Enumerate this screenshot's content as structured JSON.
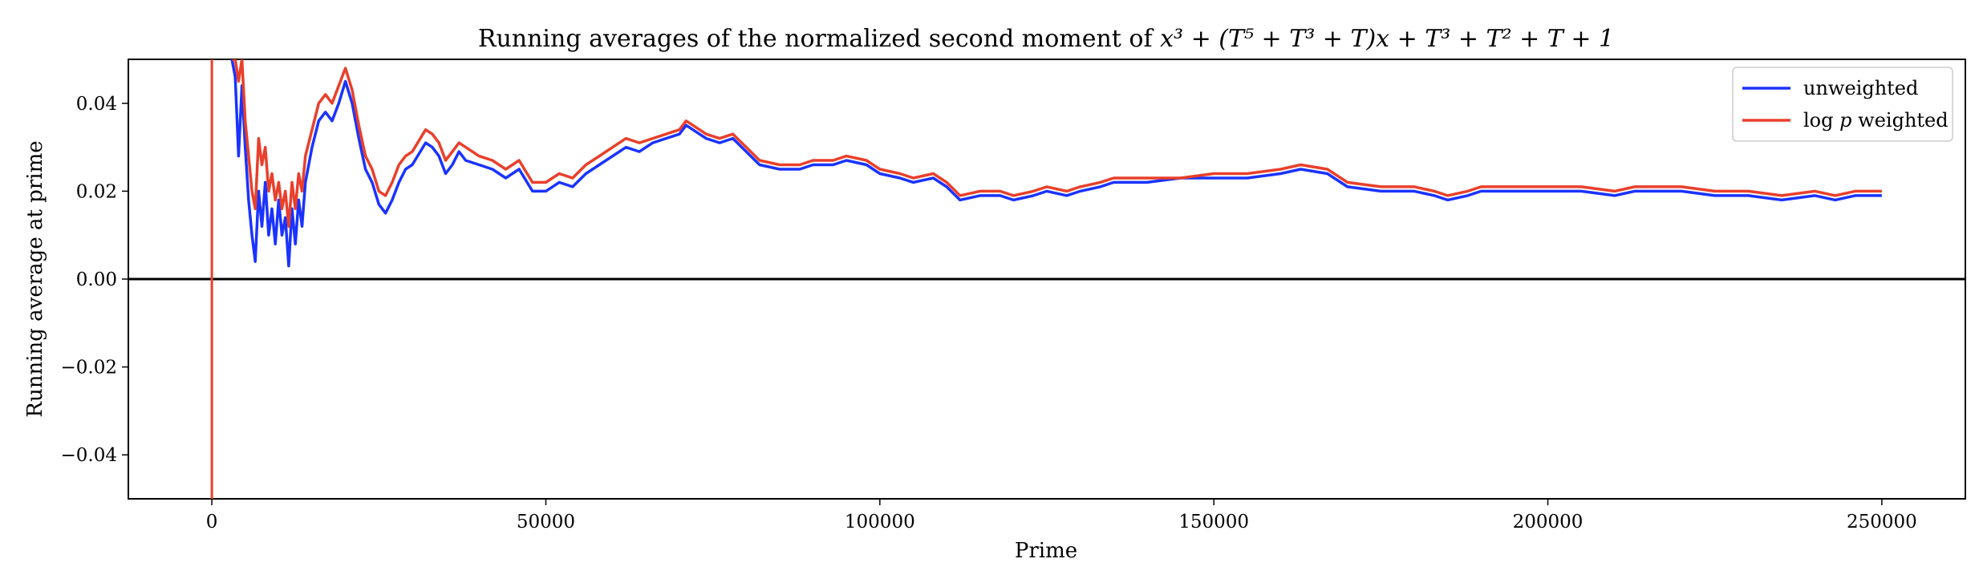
{
  "chart_data": {
    "type": "line",
    "title": "Running averages of the normalized second moment of x³ + (T⁵ + T³ + T)x + T³ + T² + T + 1",
    "title_parts": {
      "prefix": "Running averages of the normalized second moment of ",
      "formula": "x³ + (T⁵ + T³ + T)x + T³ + T² + T + 1"
    },
    "xlabel": "Prime",
    "ylabel": "Running average at prime",
    "xlim": [
      -12500,
      262500
    ],
    "ylim": [
      -0.05,
      0.05
    ],
    "x_ticks": [
      0,
      50000,
      100000,
      150000,
      200000,
      250000
    ],
    "x_tick_labels": [
      "0",
      "50000",
      "100000",
      "150000",
      "200000",
      "250000"
    ],
    "y_ticks": [
      -0.04,
      -0.02,
      0.0,
      0.02,
      0.04
    ],
    "y_tick_labels": [
      "−0.04",
      "−0.02",
      "0.00",
      "0.02",
      "0.04"
    ],
    "grid": false,
    "legend_position": "top-right",
    "reference_lines": [
      {
        "orientation": "horizontal",
        "y": 0.0,
        "color": "#000000"
      },
      {
        "orientation": "vertical",
        "x": 0,
        "color": "#e8402c"
      }
    ],
    "series": [
      {
        "name": "unweighted",
        "legend_label": "unweighted",
        "color": "#1a33ff",
        "x": [
          3000,
          3500,
          4000,
          4500,
          5000,
          5500,
          6000,
          6500,
          7000,
          7500,
          8000,
          8500,
          9000,
          9500,
          10000,
          10500,
          11000,
          11500,
          12000,
          12500,
          13000,
          13500,
          14000,
          15000,
          16000,
          17000,
          18000,
          19000,
          20000,
          21000,
          22000,
          23000,
          24000,
          25000,
          26000,
          27000,
          28000,
          29000,
          30000,
          32000,
          33000,
          34000,
          35000,
          36000,
          37000,
          38000,
          40000,
          42000,
          44000,
          46000,
          48000,
          50000,
          52000,
          54000,
          56000,
          58000,
          60000,
          62000,
          64000,
          66000,
          68000,
          70000,
          71000,
          72000,
          74000,
          76000,
          78000,
          80000,
          82000,
          85000,
          88000,
          90000,
          93000,
          95000,
          98000,
          100000,
          103000,
          105000,
          108000,
          110000,
          112000,
          115000,
          118000,
          120000,
          123000,
          125000,
          128000,
          130000,
          133000,
          135000,
          140000,
          145000,
          150000,
          155000,
          160000,
          163000,
          167000,
          170000,
          175000,
          180000,
          183000,
          185000,
          188000,
          190000,
          195000,
          200000,
          205000,
          210000,
          213000,
          215000,
          220000,
          225000,
          230000,
          235000,
          240000,
          243000,
          246000,
          250000
        ],
        "values": [
          0.05,
          0.046,
          0.028,
          0.044,
          0.03,
          0.018,
          0.01,
          0.004,
          0.02,
          0.012,
          0.022,
          0.01,
          0.016,
          0.008,
          0.018,
          0.01,
          0.014,
          0.003,
          0.016,
          0.008,
          0.018,
          0.012,
          0.022,
          0.03,
          0.036,
          0.038,
          0.036,
          0.04,
          0.045,
          0.04,
          0.032,
          0.025,
          0.022,
          0.017,
          0.015,
          0.018,
          0.022,
          0.025,
          0.026,
          0.031,
          0.03,
          0.028,
          0.024,
          0.026,
          0.029,
          0.027,
          0.026,
          0.025,
          0.023,
          0.025,
          0.02,
          0.02,
          0.022,
          0.021,
          0.024,
          0.026,
          0.028,
          0.03,
          0.029,
          0.031,
          0.032,
          0.033,
          0.035,
          0.034,
          0.032,
          0.031,
          0.032,
          0.029,
          0.026,
          0.025,
          0.025,
          0.026,
          0.026,
          0.027,
          0.026,
          0.024,
          0.023,
          0.022,
          0.023,
          0.021,
          0.018,
          0.019,
          0.019,
          0.018,
          0.019,
          0.02,
          0.019,
          0.02,
          0.021,
          0.022,
          0.022,
          0.023,
          0.023,
          0.023,
          0.024,
          0.025,
          0.024,
          0.021,
          0.02,
          0.02,
          0.019,
          0.018,
          0.019,
          0.02,
          0.02,
          0.02,
          0.02,
          0.019,
          0.02,
          0.02,
          0.02,
          0.019,
          0.019,
          0.018,
          0.019,
          0.018,
          0.019,
          0.019
        ]
      },
      {
        "name": "log p weighted",
        "legend_label_prefix": "log",
        "legend_label_var": "p",
        "legend_label_suffix": "weighted",
        "color": "#e8402c",
        "x": [
          3000,
          3500,
          4000,
          4500,
          5000,
          5500,
          6000,
          6500,
          7000,
          7500,
          8000,
          8500,
          9000,
          9500,
          10000,
          10500,
          11000,
          11500,
          12000,
          12500,
          13000,
          13500,
          14000,
          15000,
          16000,
          17000,
          18000,
          19000,
          20000,
          21000,
          22000,
          23000,
          24000,
          25000,
          26000,
          27000,
          28000,
          29000,
          30000,
          32000,
          33000,
          34000,
          35000,
          36000,
          37000,
          38000,
          40000,
          42000,
          44000,
          46000,
          48000,
          50000,
          52000,
          54000,
          56000,
          58000,
          60000,
          62000,
          64000,
          66000,
          68000,
          70000,
          71000,
          72000,
          74000,
          76000,
          78000,
          80000,
          82000,
          85000,
          88000,
          90000,
          93000,
          95000,
          98000,
          100000,
          103000,
          105000,
          108000,
          110000,
          112000,
          115000,
          118000,
          120000,
          123000,
          125000,
          128000,
          130000,
          133000,
          135000,
          140000,
          145000,
          150000,
          155000,
          160000,
          163000,
          167000,
          170000,
          175000,
          180000,
          183000,
          185000,
          188000,
          190000,
          195000,
          200000,
          205000,
          210000,
          213000,
          215000,
          220000,
          225000,
          230000,
          235000,
          240000,
          243000,
          246000,
          250000
        ],
        "values": [
          0.05,
          0.05,
          0.045,
          0.05,
          0.036,
          0.028,
          0.02,
          0.016,
          0.032,
          0.026,
          0.03,
          0.02,
          0.024,
          0.018,
          0.022,
          0.016,
          0.02,
          0.012,
          0.022,
          0.016,
          0.024,
          0.02,
          0.028,
          0.034,
          0.04,
          0.042,
          0.04,
          0.044,
          0.048,
          0.043,
          0.035,
          0.028,
          0.025,
          0.02,
          0.019,
          0.022,
          0.026,
          0.028,
          0.029,
          0.034,
          0.033,
          0.031,
          0.027,
          0.029,
          0.031,
          0.03,
          0.028,
          0.027,
          0.025,
          0.027,
          0.022,
          0.022,
          0.024,
          0.023,
          0.026,
          0.028,
          0.03,
          0.032,
          0.031,
          0.032,
          0.033,
          0.034,
          0.036,
          0.035,
          0.033,
          0.032,
          0.033,
          0.03,
          0.027,
          0.026,
          0.026,
          0.027,
          0.027,
          0.028,
          0.027,
          0.025,
          0.024,
          0.023,
          0.024,
          0.022,
          0.019,
          0.02,
          0.02,
          0.019,
          0.02,
          0.021,
          0.02,
          0.021,
          0.022,
          0.023,
          0.023,
          0.023,
          0.024,
          0.024,
          0.025,
          0.026,
          0.025,
          0.022,
          0.021,
          0.021,
          0.02,
          0.019,
          0.02,
          0.021,
          0.021,
          0.021,
          0.021,
          0.02,
          0.021,
          0.021,
          0.021,
          0.02,
          0.02,
          0.019,
          0.02,
          0.019,
          0.02,
          0.02
        ]
      }
    ]
  }
}
